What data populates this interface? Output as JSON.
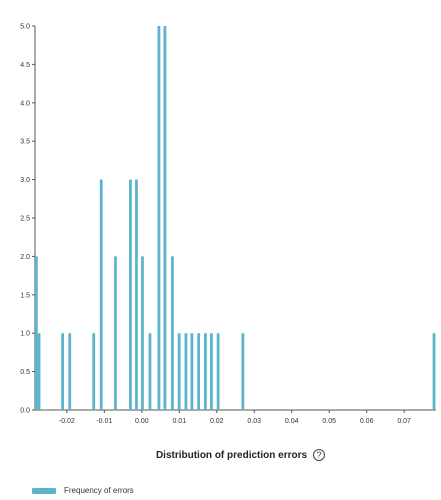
{
  "chart_data": {
    "type": "bar",
    "title": "",
    "xlabel": "Distribution of prediction errors",
    "ylabel": "",
    "xlim": [
      -0.0285,
      0.0785
    ],
    "ylim": [
      0,
      5
    ],
    "grid": false,
    "legend_placement": "bottom-left",
    "bin_width": 0.0009,
    "x_ticks": [
      "-0.02",
      "-0.01",
      "0.00",
      "0.01",
      "0.02",
      "0.03",
      "0.04",
      "0.05",
      "0.06",
      "0.07"
    ],
    "x_tick_values": [
      -0.02,
      -0.01,
      0.0,
      0.01,
      0.02,
      0.03,
      0.04,
      0.05,
      0.06,
      0.07
    ],
    "y_ticks": [
      "0.0",
      "0.5",
      "1.0",
      "1.5",
      "2.0",
      "2.5",
      "3.0",
      "3.5",
      "4.0",
      "4.5",
      "5.0"
    ],
    "y_tick_values": [
      0.0,
      0.5,
      1.0,
      1.5,
      2.0,
      2.5,
      3.0,
      3.5,
      4.0,
      4.5,
      5.0
    ],
    "series": [
      {
        "name": "Frequency of errors",
        "color": "#5ab4cc",
        "bins": [
          {
            "x": -0.0285,
            "count": 2
          },
          {
            "x": -0.0278,
            "count": 1
          },
          {
            "x": -0.0215,
            "count": 1
          },
          {
            "x": -0.0196,
            "count": 1
          },
          {
            "x": -0.0132,
            "count": 1
          },
          {
            "x": -0.0112,
            "count": 3
          },
          {
            "x": -0.0074,
            "count": 2
          },
          {
            "x": -0.0034,
            "count": 3
          },
          {
            "x": -0.0018,
            "count": 3
          },
          {
            "x": -0.0002,
            "count": 2
          },
          {
            "x": 0.0018,
            "count": 1
          },
          {
            "x": 0.0042,
            "count": 5
          },
          {
            "x": 0.0058,
            "count": 5
          },
          {
            "x": 0.0078,
            "count": 2
          },
          {
            "x": 0.0096,
            "count": 1
          },
          {
            "x": 0.0114,
            "count": 1
          },
          {
            "x": 0.013,
            "count": 1
          },
          {
            "x": 0.0148,
            "count": 1
          },
          {
            "x": 0.0166,
            "count": 1
          },
          {
            "x": 0.0182,
            "count": 1
          },
          {
            "x": 0.02,
            "count": 1
          },
          {
            "x": 0.0266,
            "count": 1
          },
          {
            "x": 0.078,
            "count": 1
          }
        ]
      }
    ]
  },
  "legend": {
    "label": "Frequency of errors",
    "color": "#5ab4cc"
  },
  "x_title": {
    "text": "Distribution of prediction errors",
    "help_glyph": "?"
  },
  "icons": {
    "help": "help-circle-icon"
  }
}
